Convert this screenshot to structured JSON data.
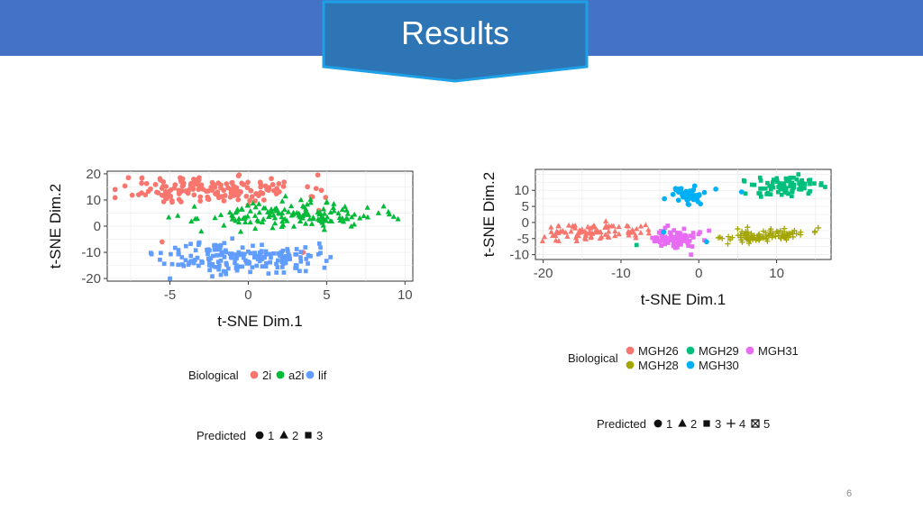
{
  "slide": {
    "title": "Results",
    "page_number": "6"
  },
  "colors": {
    "banner": "#4472c4",
    "title_fill": "#2e75b6",
    "title_border": "#1ea0e6",
    "2i": "#f8766d",
    "a2i": "#00ba38",
    "lif": "#619cff",
    "MGH26": "#f8766d",
    "MGH28": "#a3a500",
    "MGH29": "#00bf7d",
    "MGH30": "#00b0f6",
    "MGH31": "#e76bf3"
  },
  "chart_data": [
    {
      "type": "scatter",
      "title": "",
      "xlabel": "t-SNE Dim.1",
      "ylabel": "t-SNE Dim.2",
      "xlim": [
        -9,
        10.5
      ],
      "ylim": [
        -21,
        21
      ],
      "xticks": [
        -5,
        0,
        5,
        10
      ],
      "yticks": [
        20,
        10,
        0,
        -10,
        -20
      ],
      "xtick_labels": [
        "-5",
        "0",
        "5",
        "10"
      ],
      "ytick_labels": [
        "20",
        "10",
        "0",
        "-10",
        "-20"
      ],
      "grid": true,
      "legend_biological": {
        "title": "Biological",
        "items": [
          "2i",
          "a2i",
          "lif"
        ]
      },
      "legend_predicted": {
        "title": "Predicted",
        "items": [
          "1",
          "2",
          "3"
        ],
        "shapes": [
          "circle",
          "triangle",
          "square"
        ]
      },
      "series": [
        {
          "name": "2i",
          "shape": "circle",
          "cx": -2.5,
          "cy": 14,
          "sx": 3.0,
          "sy": 2.8,
          "n": 170,
          "seed": 11,
          "extra": [
            [
              -8.5,
              14
            ],
            [
              -7,
              12
            ],
            [
              1,
              10
            ],
            [
              4.5,
              6
            ],
            [
              -5.5,
              -6
            ],
            [
              3.5,
              -10
            ]
          ]
        },
        {
          "name": "a2i",
          "shape": "triangle",
          "cx": 2.5,
          "cy": 4,
          "sx": 2.8,
          "sy": 2.4,
          "n": 150,
          "seed": 23,
          "extra": [
            [
              9,
              4.5
            ],
            [
              -3,
              -2
            ],
            [
              -4.5,
              4
            ],
            [
              6,
              3
            ]
          ]
        },
        {
          "name": "lif",
          "shape": "square",
          "cx": -0.5,
          "cy": -12,
          "sx": 2.4,
          "sy": 3.0,
          "n": 190,
          "seed": 37,
          "extra": [
            [
              -5,
              -20
            ],
            [
              3,
              -16
            ],
            [
              -4,
              -13
            ]
          ]
        }
      ]
    },
    {
      "type": "scatter",
      "title": "",
      "xlabel": "t-SNE Dim.1",
      "ylabel": "t-SNE Dim.2",
      "xlim": [
        -21,
        17
      ],
      "ylim": [
        -11.5,
        16.5
      ],
      "xticks": [
        -20,
        -10,
        0,
        10
      ],
      "yticks": [
        10,
        5,
        0,
        -5,
        -10
      ],
      "xtick_labels": [
        "-20",
        "-10",
        "0",
        "10"
      ],
      "ytick_labels": [
        "10",
        "5",
        "0",
        "-5",
        "-10"
      ],
      "grid": true,
      "legend_biological": {
        "title": "Biological",
        "items": [
          "MGH26",
          "MGH29",
          "MGH31",
          "MGH28",
          "MGH30"
        ]
      },
      "legend_predicted": {
        "title": "Predicted",
        "items": [
          "1",
          "2",
          "3",
          "4",
          "5"
        ],
        "shapes": [
          "circle",
          "triangle",
          "square",
          "plus",
          "boxx"
        ]
      },
      "series": [
        {
          "name": "MGH26",
          "shape": "triangle",
          "cx": -14,
          "cy": -3,
          "sx": 3.8,
          "sy": 1.4,
          "n": 90,
          "seed": 51,
          "tilt": 0.18,
          "extra": [
            [
              -19,
              -1.5
            ],
            [
              -8,
              -2
            ],
            [
              -9,
              -4
            ]
          ]
        },
        {
          "name": "MGH29",
          "shape": "square",
          "cx": 11,
          "cy": 11.5,
          "sx": 2.0,
          "sy": 1.6,
          "n": 85,
          "seed": 63,
          "extra": [
            [
              6,
              9
            ],
            [
              8,
              8
            ],
            [
              -8,
              -7
            ]
          ]
        },
        {
          "name": "MGH31",
          "shape": "square",
          "cx": -3,
          "cy": -5,
          "sx": 1.8,
          "sy": 1.5,
          "n": 80,
          "seed": 77,
          "extra": [
            [
              -4,
              -1
            ],
            [
              -1,
              -10
            ]
          ]
        },
        {
          "name": "MGH28",
          "shape": "plus",
          "cx": 9,
          "cy": -4,
          "sx": 3.0,
          "sy": 1.0,
          "n": 100,
          "seed": 89,
          "tilt": 0.18,
          "extra": [
            [
              3,
              -5
            ],
            [
              5,
              -2
            ]
          ]
        },
        {
          "name": "MGH30",
          "shape": "circle",
          "cx": -1.8,
          "cy": 8.5,
          "sx": 1.3,
          "sy": 1.4,
          "n": 55,
          "seed": 97,
          "extra": [
            [
              5.5,
              9.5
            ],
            [
              1,
              -6
            ],
            [
              -4.5,
              -3
            ]
          ]
        }
      ]
    }
  ]
}
